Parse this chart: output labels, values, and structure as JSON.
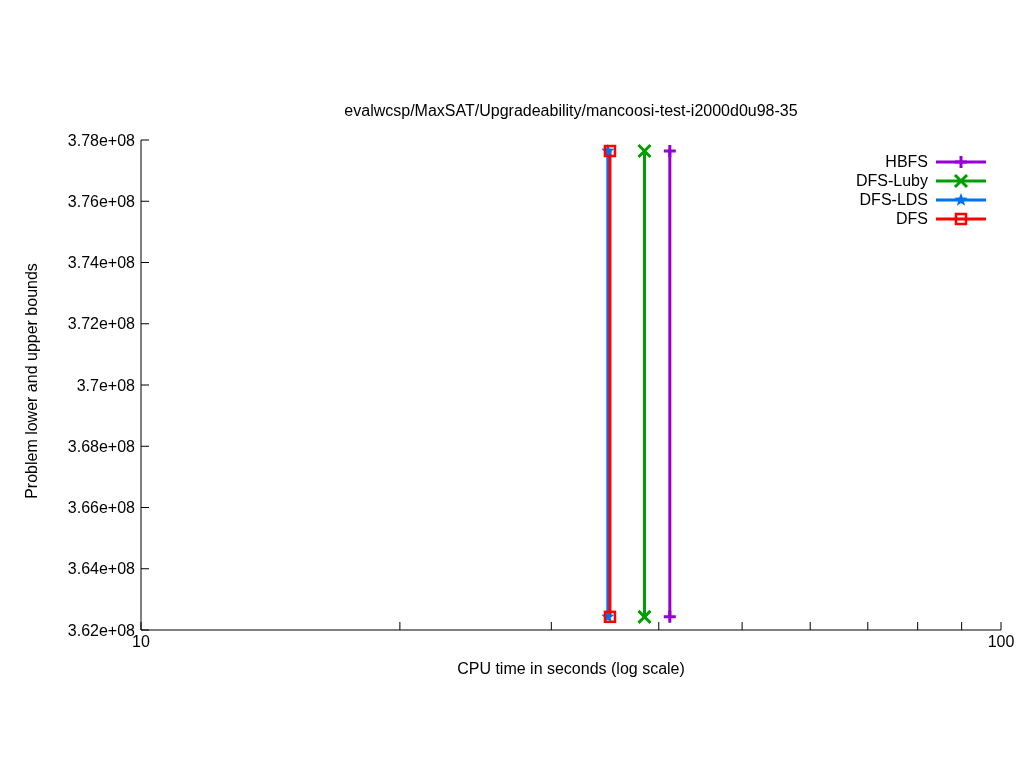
{
  "chart_data": {
    "type": "line",
    "title": "evalwcsp/MaxSAT/Upgradeability/mancoosi-test-i2000d0u98-35",
    "xlabel": "CPU time in seconds (log scale)",
    "ylabel": "Problem lower and upper bounds",
    "log": "x",
    "xlim": [
      10,
      100
    ],
    "xticks": [
      10,
      {
        "value": 20,
        "label": null
      },
      {
        "value": 30,
        "label": null
      },
      {
        "value": 40,
        "label": null
      },
      {
        "value": 50,
        "label": null
      },
      {
        "value": 60,
        "label": null
      },
      {
        "value": 70,
        "label": null
      },
      {
        "value": 80,
        "label": null
      },
      {
        "value": 90,
        "label": null
      },
      100
    ],
    "ylim": [
      362000000,
      378000000
    ],
    "yticks": [
      {
        "value": 362000000,
        "label": "3.62e+08"
      },
      {
        "value": 364000000,
        "label": "3.64e+08"
      },
      {
        "value": 366000000,
        "label": "3.66e+08"
      },
      {
        "value": 368000000,
        "label": "3.68e+08"
      },
      {
        "value": 370000000,
        "label": "3.7e+08"
      },
      {
        "value": 372000000,
        "label": "3.72e+08"
      },
      {
        "value": 374000000,
        "label": "3.74e+08"
      },
      {
        "value": 376000000,
        "label": "3.76e+08"
      },
      {
        "value": 378000000,
        "label": "3.78e+08"
      }
    ],
    "grid": false,
    "legend": "top right",
    "series": [
      {
        "name": "HBFS",
        "color": "#9400d3",
        "marker": "plus",
        "x": [
          41.2,
          41.2
        ],
        "values": [
          362430000,
          377640000
        ]
      },
      {
        "name": "DFS-Luby",
        "color": "#009e00",
        "marker": "cross",
        "x": [
          38.5,
          38.5
        ],
        "values": [
          362430000,
          377640000
        ]
      },
      {
        "name": "DFS-LDS",
        "color": "#0072f0",
        "marker": "star",
        "x": [
          34.9,
          34.9
        ],
        "values": [
          362430000,
          377640000
        ]
      },
      {
        "name": "DFS",
        "color": "#ff0000",
        "marker": "square",
        "x": [
          35.1,
          35.1
        ],
        "values": [
          362430000,
          377640000
        ]
      }
    ]
  }
}
